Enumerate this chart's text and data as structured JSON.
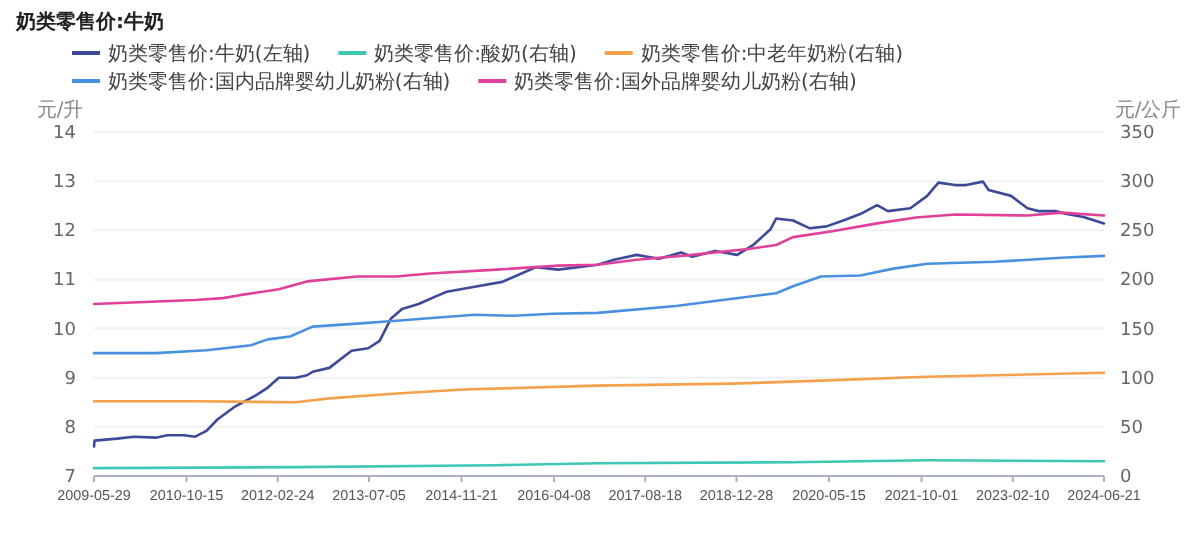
{
  "chart_data": {
    "type": "line",
    "title": "奶类零售价:牛奶",
    "ylabel": "元/升",
    "y2label": "元/公斤",
    "xlim": [
      "2009-05-29",
      "2024-06-21"
    ],
    "xticks": [
      "2009-05-29",
      "2010-10-15",
      "2012-02-24",
      "2013-07-05",
      "2014-11-21",
      "2016-04-08",
      "2017-08-18",
      "2018-12-28",
      "2020-05-15",
      "2021-10-01",
      "2023-02-10",
      "2024-06-21"
    ],
    "ylim": [
      7,
      14
    ],
    "yticks": [
      7,
      8,
      9,
      10,
      11,
      12,
      13,
      14
    ],
    "y2lim": [
      0,
      350
    ],
    "y2ticks": [
      0,
      50,
      100,
      150,
      200,
      250,
      300,
      350
    ],
    "grid": "y",
    "legend": "top",
    "series": [
      {
        "name": "奶类零售价:牛奶(左轴)",
        "color": "#3d4a9a",
        "x": [
          "2009-05-29",
          "2009-06",
          "2009-10",
          "2010-01",
          "2010-05",
          "2010-07",
          "2010-10",
          "2010-12",
          "2011-02",
          "2011-04",
          "2011-07",
          "2011-11",
          "2012-01",
          "2012-03",
          "2012-06",
          "2012-08",
          "2012-09",
          "2012-12",
          "2013-04",
          "2013-07",
          "2013-09",
          "2013-11",
          "2014-01",
          "2014-04",
          "2014-07",
          "2014-09",
          "2015-02",
          "2015-07",
          "2015-10",
          "2016-01",
          "2016-05",
          "2016-12",
          "2017-03",
          "2017-07",
          "2017-11",
          "2018-03",
          "2018-05",
          "2018-09",
          "2019-01",
          "2019-04",
          "2019-07",
          "2019-08",
          "2019-11",
          "2020-02",
          "2020-05",
          "2020-08",
          "2020-11",
          "2021-02",
          "2021-04",
          "2021-08",
          "2021-11",
          "2022-01",
          "2022-04",
          "2022-06",
          "2022-09",
          "2022-10",
          "2023-02",
          "2023-05",
          "2023-07",
          "2023-10",
          "2023-12",
          "2024-03",
          "2024-06-21"
        ],
        "values": [
          7.6,
          7.72,
          7.76,
          7.8,
          7.78,
          7.83,
          7.83,
          7.8,
          7.92,
          8.15,
          8.4,
          8.65,
          8.8,
          9.0,
          9.0,
          9.05,
          9.12,
          9.2,
          9.55,
          9.6,
          9.75,
          10.2,
          10.4,
          10.5,
          10.65,
          10.75,
          10.85,
          10.95,
          11.1,
          11.25,
          11.2,
          11.3,
          11.4,
          11.5,
          11.42,
          11.55,
          11.46,
          11.58,
          11.5,
          11.71,
          12.02,
          12.24,
          12.2,
          12.04,
          12.08,
          12.2,
          12.33,
          12.51,
          12.39,
          12.45,
          12.7,
          12.97,
          12.92,
          12.92,
          12.99,
          12.82,
          12.7,
          12.45,
          12.39,
          12.39,
          12.33,
          12.27,
          12.14
        ]
      },
      {
        "name": "奶类零售价:酸奶(右轴)",
        "color": "#3cc8b4",
        "axis": "y2",
        "x": [
          "2009-05-29",
          "2012-06",
          "2015-06",
          "2016-12",
          "2019-11",
          "2021-11",
          "2024-06-21"
        ],
        "values": [
          8,
          9,
          11,
          13,
          14,
          16,
          15
        ]
      },
      {
        "name": "奶类零售价:中老年奶粉(右轴)",
        "color": "#f5a04a",
        "axis": "y2",
        "x": [
          "2009-05-29",
          "2010-12",
          "2012-06",
          "2012-12",
          "2013-12",
          "2014-12",
          "2016-12",
          "2018-12",
          "2019-11",
          "2021-11",
          "2024-06-21"
        ],
        "values": [
          76,
          76,
          75,
          79,
          84,
          88,
          92,
          94,
          96,
          101,
          105
        ]
      },
      {
        "name": "奶类零售价:国内品牌婴幼儿奶粉(右轴)",
        "color": "#4a90e0",
        "axis": "y2",
        "x": [
          "2009-05-29",
          "2010-05",
          "2011-02",
          "2011-10",
          "2012-01",
          "2012-05",
          "2012-09",
          "2013-05",
          "2013-12",
          "2014-07",
          "2015-02",
          "2015-09",
          "2016-04",
          "2016-12",
          "2018-02",
          "2018-09",
          "2019-08",
          "2019-11",
          "2020-04",
          "2020-11",
          "2021-05",
          "2021-11",
          "2022-11",
          "2023-11",
          "2024-06-21"
        ],
        "values": [
          125,
          125,
          128,
          133,
          139,
          142,
          152,
          155,
          158,
          161,
          164,
          163,
          165,
          166,
          173,
          178,
          186,
          193,
          203,
          204,
          211,
          216,
          218,
          222,
          224
        ]
      },
      {
        "name": "奶类零售价:国外品牌婴幼儿奶粉(右轴)",
        "color": "#e0409a",
        "axis": "y2",
        "x": [
          "2009-05-29",
          "2010-12",
          "2011-05",
          "2011-08",
          "2012-03",
          "2012-08",
          "2013-05",
          "2013-12",
          "2014-06",
          "2015-06",
          "2016-05",
          "2016-12",
          "2017-07",
          "2018-05",
          "2019-03",
          "2019-08",
          "2019-11",
          "2020-06",
          "2021-02",
          "2021-09",
          "2022-04",
          "2023-05",
          "2023-11",
          "2024-06-21"
        ],
        "values": [
          175,
          179,
          181,
          184,
          190,
          198,
          203,
          203,
          206,
          210,
          214,
          215,
          220,
          225,
          231,
          235,
          243,
          249,
          257,
          263,
          266,
          265,
          268,
          265
        ]
      }
    ]
  }
}
